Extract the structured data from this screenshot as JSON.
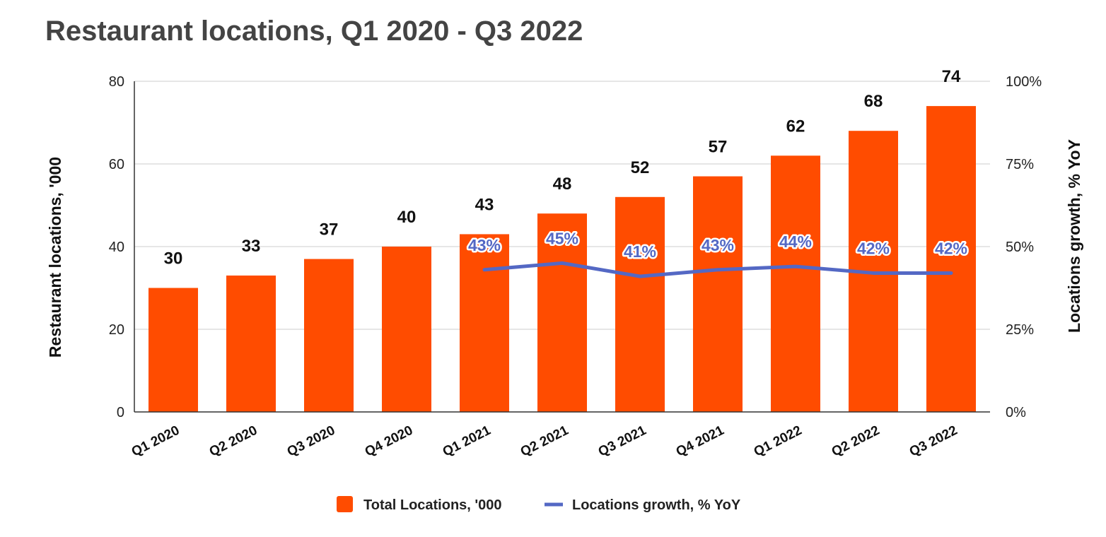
{
  "chart_data": {
    "type": "bar",
    "title": "Restaurant locations, Q1 2020 - Q3 2022",
    "categories": [
      "Q1 2020",
      "Q2 2020",
      "Q3 2020",
      "Q4 2020",
      "Q1 2021",
      "Q2 2021",
      "Q3 2021",
      "Q4 2021",
      "Q1 2022",
      "Q2 2022",
      "Q3 2022"
    ],
    "series": [
      {
        "name": "Total Locations, '000",
        "type": "bar",
        "axis": "left",
        "color": "#FF4C00",
        "values": [
          30,
          33,
          37,
          40,
          43,
          48,
          52,
          57,
          62,
          68,
          74
        ],
        "labels": [
          "30",
          "33",
          "37",
          "40",
          "43",
          "48",
          "52",
          "57",
          "62",
          "68",
          "74"
        ]
      },
      {
        "name": "Locations growth, % YoY",
        "type": "line",
        "axis": "right",
        "color": "#5468C4",
        "values": [
          null,
          null,
          null,
          null,
          43,
          45,
          41,
          43,
          44,
          42,
          42
        ],
        "labels": [
          "",
          "",
          "",
          "",
          "43%",
          "45%",
          "41%",
          "43%",
          "44%",
          "42%",
          "42%"
        ]
      }
    ],
    "ylabel": "Restaurant locations, '000",
    "ylim": [
      0,
      80
    ],
    "yticks": [
      0,
      20,
      40,
      60,
      80
    ],
    "ytick_labels": [
      "0",
      "20",
      "40",
      "60",
      "80"
    ],
    "y2label": "Locations growth, % YoY",
    "y2lim": [
      0,
      100
    ],
    "y2ticks": [
      0,
      25,
      50,
      75,
      100
    ],
    "y2tick_labels": [
      "0%",
      "25%",
      "50%",
      "75%",
      "100%"
    ],
    "grid": true,
    "legend_position": "bottom"
  }
}
